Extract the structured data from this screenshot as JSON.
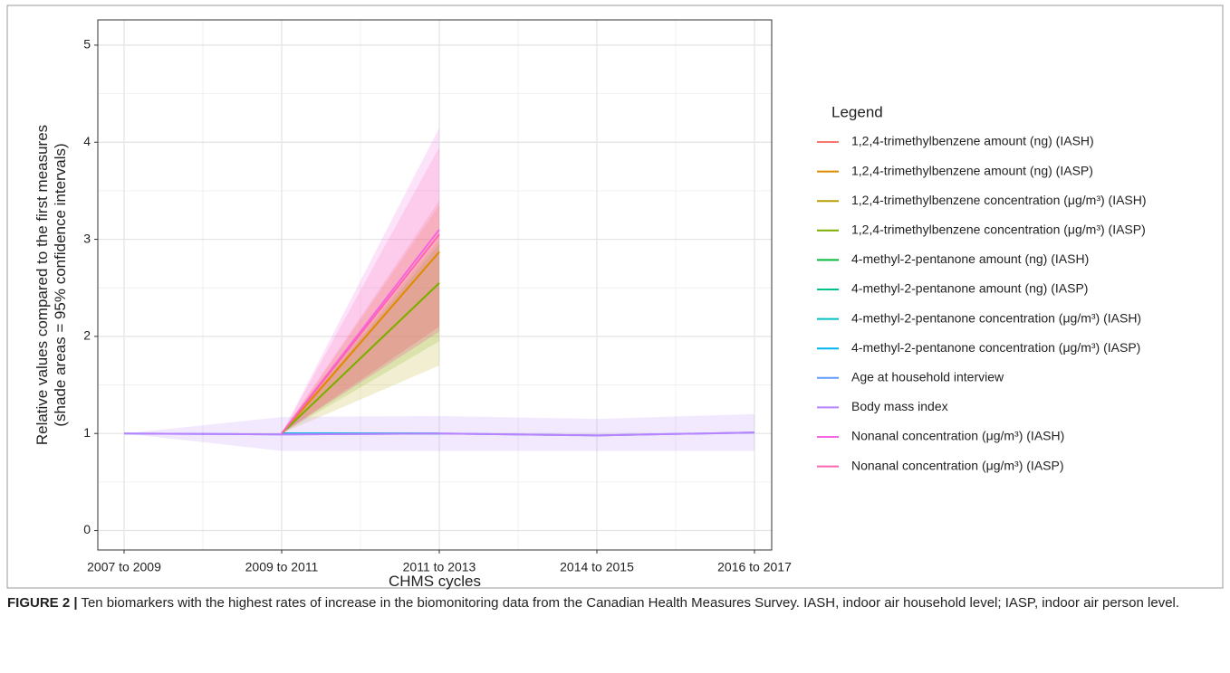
{
  "chart_data": {
    "type": "line",
    "ylabel": [
      "Relative values compared to the first measures",
      "(shade areas = 95% confidence intervals)"
    ],
    "xlabel": "CHMS cycles",
    "legend_title": "Legend",
    "legend_position": "right",
    "grid": true,
    "categories": [
      "2007 to 2009",
      "2009 to 2011",
      "2011 to 2013",
      "2014 to 2015",
      "2016 to 2017"
    ],
    "ylim": [
      -0.2,
      5.26
    ],
    "yticks": [
      0,
      1,
      2,
      3,
      4,
      5
    ],
    "series": [
      {
        "name": "1,2,4-trimethylbenzene amount (ng) (IASH)",
        "color": "#F8766D",
        "values": [
          null,
          1,
          2.87,
          null,
          null
        ],
        "lower": [
          null,
          1,
          2.05,
          null,
          null
        ],
        "upper": [
          null,
          1,
          3.4,
          null,
          null
        ]
      },
      {
        "name": "1,2,4-trimethylbenzene amount (ng) (IASP)",
        "color": "#DE8C00",
        "values": [
          null,
          1,
          2.87,
          null,
          null
        ],
        "lower": [
          null,
          1,
          2.1,
          null,
          null
        ],
        "upper": [
          null,
          1,
          3.35,
          null,
          null
        ]
      },
      {
        "name": "1,2,4-trimethylbenzene concentration (μg/m³) (IASH)",
        "color": "#B79F00",
        "values": [
          null,
          1,
          2.55,
          null,
          null
        ],
        "lower": [
          null,
          1,
          1.7,
          null,
          null
        ],
        "upper": [
          null,
          1,
          3.0,
          null,
          null
        ]
      },
      {
        "name": "1,2,4-trimethylbenzene concentration (μg/m³) (IASP)",
        "color": "#7CAE00",
        "values": [
          null,
          1,
          2.55,
          null,
          null
        ],
        "lower": [
          null,
          1,
          1.95,
          null,
          null
        ],
        "upper": [
          null,
          1,
          2.95,
          null,
          null
        ]
      },
      {
        "name": "4-methyl-2-pentanone amount (ng) (IASH)",
        "color": "#00BA38",
        "values": [
          null,
          1,
          1,
          null,
          null
        ]
      },
      {
        "name": "4-methyl-2-pentanone amount (ng) (IASP)",
        "color": "#00C08B",
        "values": [
          null,
          1,
          1,
          null,
          null
        ]
      },
      {
        "name": "4-methyl-2-pentanone concentration (μg/m³) (IASH)",
        "color": "#00BFC4",
        "values": [
          null,
          1,
          1,
          null,
          null
        ]
      },
      {
        "name": "4-methyl-2-pentanone concentration (μg/m³) (IASP)",
        "color": "#00B4F0",
        "values": [
          null,
          1,
          1,
          null,
          null
        ]
      },
      {
        "name": "Age at household interview",
        "color": "#619CFF",
        "values": [
          1,
          0.99,
          1.0,
          0.98,
          1.01
        ]
      },
      {
        "name": "Body mass index",
        "color": "#B983FF",
        "values": [
          1,
          0.99,
          1.0,
          0.98,
          1.01
        ],
        "lower": [
          1,
          0.82,
          0.82,
          0.82,
          0.82
        ],
        "upper": [
          1,
          1.17,
          1.18,
          1.15,
          1.2
        ]
      },
      {
        "name": "Nonanal concentration (μg/m³) (IASH)",
        "color": "#F564E3",
        "values": [
          null,
          1,
          3.1,
          null,
          null
        ],
        "lower": [
          null,
          1,
          2.05,
          null,
          null
        ],
        "upper": [
          null,
          1,
          4.15,
          null,
          null
        ]
      },
      {
        "name": "Nonanal concentration (μg/m³) (IASP)",
        "color": "#FF64B0",
        "values": [
          null,
          1,
          3.05,
          null,
          null
        ],
        "lower": [
          null,
          1,
          2.1,
          null,
          null
        ],
        "upper": [
          null,
          1,
          3.95,
          null,
          null
        ]
      }
    ]
  },
  "caption": {
    "label": "FIGURE 2 |",
    "text": "Ten biomarkers with the highest rates of increase in the biomonitoring data from the Canadian Health Measures Survey. IASH, indoor air household level; IASP, indoor air person level."
  }
}
